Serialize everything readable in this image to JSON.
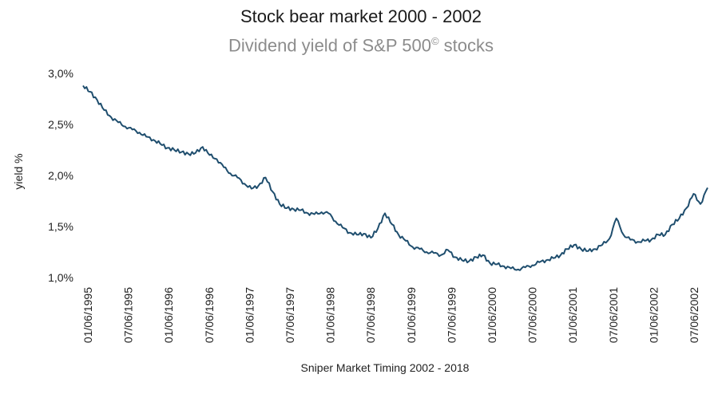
{
  "chart_data": {
    "type": "line",
    "title": "Stock bear market 2000 - 2002",
    "subtitle_text": "Dividend yield of S&P 500",
    "subtitle_sup": "©",
    "subtitle_suffix": " stocks",
    "ylabel": "yield %",
    "xlabel": "Sniper Market Timing 2002 - 2018",
    "ylim": [
      1.0,
      3.0
    ],
    "yticks": [
      "1,0%",
      "1,5%",
      "2,0%",
      "2,5%",
      "3,0%"
    ],
    "ytick_values": [
      1.0,
      1.5,
      2.0,
      2.5,
      3.0
    ],
    "xlim": [
      "1995-06-01",
      "2002-11-15"
    ],
    "xtick_labels": [
      "01/06/1995",
      "07/06/1995",
      "01/06/1996",
      "07/06/1996",
      "01/06/1997",
      "07/06/1997",
      "01/06/1998",
      "07/06/1998",
      "01/06/1999",
      "07/06/1999",
      "01/06/2000",
      "07/06/2000",
      "01/06/2001",
      "07/06/2001",
      "01/06/2002",
      "07/06/2002"
    ],
    "xtick_dates": [
      "1995-01-06",
      "1995-07-06",
      "1996-01-06",
      "1996-07-06",
      "1997-01-06",
      "1997-07-06",
      "1998-01-06",
      "1998-07-06",
      "1999-01-06",
      "1999-07-06",
      "2000-01-06",
      "2000-07-06",
      "2001-01-06",
      "2001-07-06",
      "2002-01-06",
      "2002-07-06"
    ],
    "grid": false,
    "color": "#1f4e6e",
    "series": [
      {
        "x": [
          "1995-06-01",
          "1995-07-01",
          "1995-08-01",
          "1995-09-01",
          "1995-10-01",
          "1995-11-01",
          "1995-12-01",
          "1996-01-01",
          "1996-02-01",
          "1996-03-01",
          "1996-04-01",
          "1996-05-01",
          "1996-06-01",
          "1996-07-01",
          "1996-08-01",
          "1996-09-01",
          "1996-10-01",
          "1996-11-01",
          "1996-12-01",
          "1997-01-01",
          "1997-02-01",
          "1997-03-01",
          "1997-04-01",
          "1997-05-01",
          "1997-06-01",
          "1997-07-01",
          "1997-08-01",
          "1997-09-01",
          "1997-10-01",
          "1997-11-01",
          "1997-12-01",
          "1998-01-01",
          "1998-02-01",
          "1998-03-01",
          "1998-04-01",
          "1998-05-01",
          "1998-06-01",
          "1998-07-01",
          "1998-08-01",
          "1998-09-01",
          "1998-10-01",
          "1998-11-01",
          "1998-12-01",
          "1999-01-01",
          "1999-02-01",
          "1999-03-01",
          "1999-04-01",
          "1999-05-01",
          "1999-06-01",
          "1999-07-01",
          "1999-08-01",
          "1999-09-01",
          "1999-10-01",
          "1999-11-01",
          "1999-12-01",
          "2000-01-01",
          "2000-02-01",
          "2000-03-01",
          "2000-04-01",
          "2000-05-01",
          "2000-06-01",
          "2000-07-01",
          "2000-08-01",
          "2000-09-01",
          "2000-10-01",
          "2000-11-01",
          "2000-12-01",
          "2001-01-01",
          "2001-02-01",
          "2001-03-01",
          "2001-04-01",
          "2001-05-01",
          "2001-06-01",
          "2001-07-01",
          "2001-08-01",
          "2001-09-01",
          "2001-10-01",
          "2001-11-01",
          "2001-12-01",
          "2002-01-01",
          "2002-02-01",
          "2002-03-01",
          "2002-04-01",
          "2002-05-01",
          "2002-06-01",
          "2002-07-01",
          "2002-08-01",
          "2002-09-01",
          "2002-10-01",
          "2002-11-01"
        ],
        "values": [
          2.88,
          2.82,
          2.74,
          2.64,
          2.57,
          2.52,
          2.48,
          2.45,
          2.42,
          2.38,
          2.35,
          2.31,
          2.27,
          2.25,
          2.23,
          2.21,
          2.22,
          2.28,
          2.2,
          2.16,
          2.08,
          2.02,
          1.98,
          1.92,
          1.87,
          1.9,
          1.98,
          1.84,
          1.72,
          1.68,
          1.67,
          1.66,
          1.63,
          1.62,
          1.64,
          1.63,
          1.55,
          1.49,
          1.44,
          1.42,
          1.43,
          1.39,
          1.48,
          1.63,
          1.52,
          1.42,
          1.36,
          1.3,
          1.28,
          1.25,
          1.24,
          1.22,
          1.27,
          1.2,
          1.17,
          1.16,
          1.2,
          1.22,
          1.14,
          1.13,
          1.11,
          1.09,
          1.08,
          1.1,
          1.12,
          1.15,
          1.17,
          1.19,
          1.22,
          1.28,
          1.32,
          1.28,
          1.26,
          1.28,
          1.32,
          1.38,
          1.58,
          1.42,
          1.37,
          1.35,
          1.36,
          1.37,
          1.42,
          1.42,
          1.52,
          1.58,
          1.68,
          1.82,
          1.72,
          1.88
        ]
      }
    ]
  }
}
